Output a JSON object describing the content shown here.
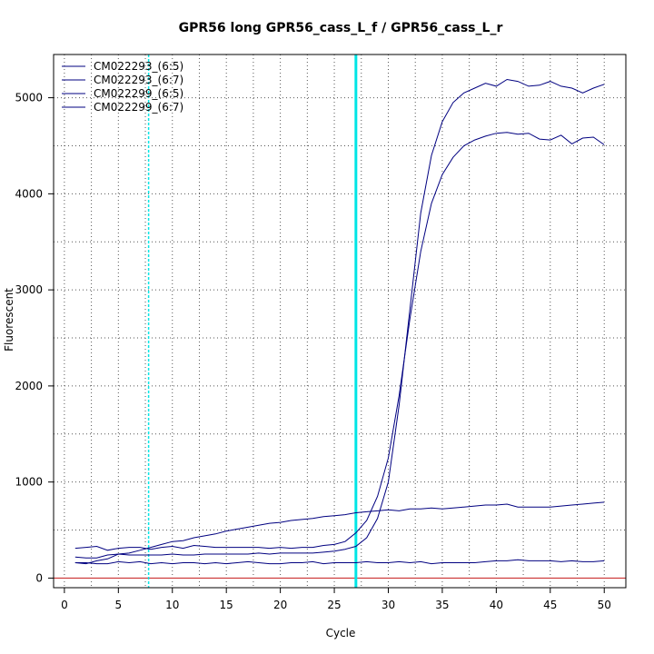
{
  "chart_data": {
    "type": "line",
    "title": "GPR56 long GPR56_cass_L_f / GPR56_cass_L_r",
    "xlabel": "Cycle",
    "ylabel": "Fluorescent",
    "xlim": [
      -1,
      52
    ],
    "ylim": [
      -100,
      5450
    ],
    "x_ticks": [
      0,
      5,
      10,
      15,
      20,
      25,
      30,
      35,
      40,
      45,
      50
    ],
    "y_ticks": [
      0,
      1000,
      2000,
      3000,
      4000,
      5000
    ],
    "x_grid": [
      2.5,
      7.5,
      12.5,
      17.5,
      22.5,
      27.5,
      32.5,
      37.5,
      42.5,
      47.5
    ],
    "y_grid": [
      500,
      1000,
      1500,
      2000,
      2500,
      3000,
      3500,
      4000,
      4500,
      5000
    ],
    "grid": true,
    "legend_position": "top-left",
    "colors": {
      "series": "#000080",
      "threshold": "#cc3333",
      "cycle_marker": "#00e5e5"
    },
    "threshold_line": {
      "y": 0
    },
    "vertical_markers": [
      {
        "x": 7.8,
        "style": "dashed"
      },
      {
        "x": 27.0,
        "style": "solid"
      }
    ],
    "x": [
      1,
      2,
      3,
      4,
      5,
      6,
      7,
      8,
      9,
      10,
      11,
      12,
      13,
      14,
      15,
      16,
      17,
      18,
      19,
      20,
      21,
      22,
      23,
      24,
      25,
      26,
      27,
      28,
      29,
      30,
      31,
      32,
      33,
      34,
      35,
      36,
      37,
      38,
      39,
      40,
      41,
      42,
      43,
      44,
      45,
      46,
      47,
      48,
      49,
      50
    ],
    "series": [
      {
        "name": "CM022293_(6:5)",
        "values": [
          160,
          150,
          180,
          200,
          250,
          260,
          290,
          320,
          350,
          380,
          390,
          420,
          440,
          460,
          490,
          510,
          530,
          550,
          570,
          580,
          600,
          610,
          620,
          640,
          650,
          660,
          680,
          690,
          700,
          710,
          700,
          720,
          720,
          730,
          720,
          730,
          740,
          750,
          760,
          760,
          770,
          740,
          740,
          740,
          740,
          750,
          760,
          770,
          780,
          790
        ]
      },
      {
        "name": "CM022293_(6:7)",
        "values": [
          220,
          210,
          210,
          240,
          250,
          240,
          240,
          240,
          240,
          250,
          240,
          240,
          250,
          250,
          250,
          250,
          250,
          260,
          250,
          260,
          260,
          260,
          260,
          270,
          280,
          300,
          330,
          420,
          620,
          1000,
          1800,
          2800,
          3800,
          4400,
          4750,
          4950,
          5050,
          5100,
          5150,
          5120,
          5190,
          5170,
          5120,
          5130,
          5170,
          5120,
          5100,
          5050,
          5100,
          5140
        ]
      },
      {
        "name": "CM022299_(6:5)",
        "values": [
          310,
          320,
          330,
          290,
          310,
          320,
          320,
          300,
          320,
          330,
          310,
          340,
          330,
          320,
          320,
          320,
          320,
          320,
          310,
          320,
          310,
          320,
          320,
          340,
          350,
          380,
          470,
          600,
          850,
          1250,
          1900,
          2700,
          3400,
          3900,
          4200,
          4380,
          4500,
          4560,
          4600,
          4630,
          4640,
          4620,
          4630,
          4570,
          4560,
          4610,
          4520,
          4580,
          4590,
          4510
        ]
      },
      {
        "name": "CM022299_(6:7)",
        "values": [
          160,
          160,
          150,
          150,
          170,
          160,
          170,
          150,
          160,
          150,
          160,
          160,
          150,
          160,
          150,
          160,
          170,
          160,
          150,
          150,
          160,
          160,
          170,
          150,
          160,
          160,
          160,
          170,
          160,
          160,
          170,
          160,
          170,
          150,
          160,
          160,
          160,
          160,
          170,
          180,
          180,
          190,
          180,
          180,
          180,
          170,
          180,
          170,
          170,
          180
        ]
      }
    ]
  }
}
